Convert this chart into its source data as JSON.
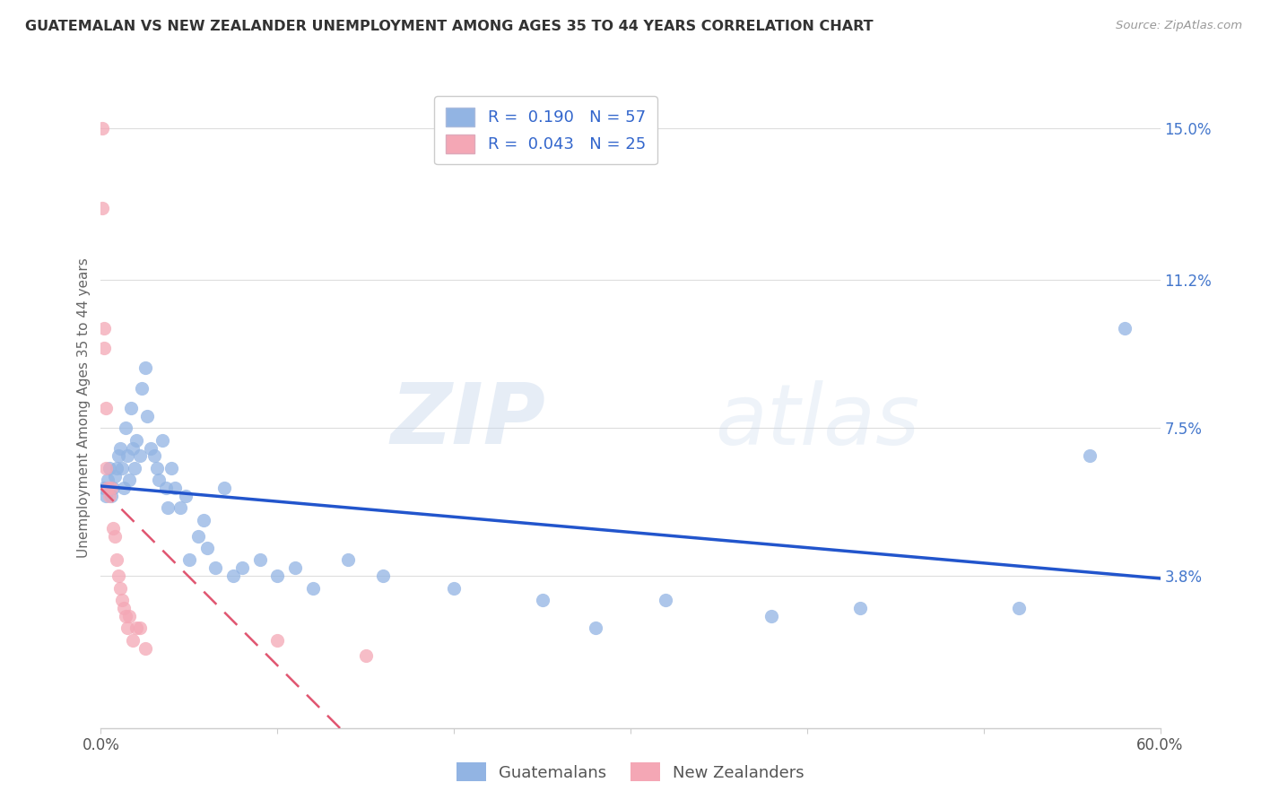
{
  "title": "GUATEMALAN VS NEW ZEALANDER UNEMPLOYMENT AMONG AGES 35 TO 44 YEARS CORRELATION CHART",
  "source": "Source: ZipAtlas.com",
  "ylabel": "Unemployment Among Ages 35 to 44 years",
  "xlim": [
    0.0,
    0.6
  ],
  "ylim": [
    0.0,
    0.16
  ],
  "yticks_right": [
    0.0,
    0.038,
    0.075,
    0.112,
    0.15
  ],
  "yticklabels_right": [
    "",
    "3.8%",
    "7.5%",
    "11.2%",
    "15.0%"
  ],
  "guatemalan_R": 0.19,
  "guatemalan_N": 57,
  "newzealander_R": 0.043,
  "newzealander_N": 25,
  "blue_color": "#92B4E3",
  "pink_color": "#F4A7B5",
  "blue_line_color": "#2255CC",
  "pink_line_color": "#E05570",
  "grid_color": "#DDDDDD",
  "title_color": "#333333",
  "right_tick_color": "#4477CC",
  "guatemalan_x": [
    0.002,
    0.003,
    0.004,
    0.005,
    0.006,
    0.007,
    0.008,
    0.009,
    0.01,
    0.011,
    0.012,
    0.013,
    0.014,
    0.015,
    0.016,
    0.017,
    0.018,
    0.019,
    0.02,
    0.022,
    0.023,
    0.025,
    0.026,
    0.028,
    0.03,
    0.032,
    0.033,
    0.035,
    0.037,
    0.038,
    0.04,
    0.042,
    0.045,
    0.048,
    0.05,
    0.055,
    0.058,
    0.06,
    0.065,
    0.07,
    0.075,
    0.08,
    0.09,
    0.1,
    0.11,
    0.12,
    0.14,
    0.16,
    0.2,
    0.25,
    0.28,
    0.32,
    0.38,
    0.43,
    0.52,
    0.56,
    0.58
  ],
  "guatemalan_y": [
    0.06,
    0.058,
    0.062,
    0.065,
    0.058,
    0.06,
    0.063,
    0.065,
    0.068,
    0.07,
    0.065,
    0.06,
    0.075,
    0.068,
    0.062,
    0.08,
    0.07,
    0.065,
    0.072,
    0.068,
    0.085,
    0.09,
    0.078,
    0.07,
    0.068,
    0.065,
    0.062,
    0.072,
    0.06,
    0.055,
    0.065,
    0.06,
    0.055,
    0.058,
    0.042,
    0.048,
    0.052,
    0.045,
    0.04,
    0.06,
    0.038,
    0.04,
    0.042,
    0.038,
    0.04,
    0.035,
    0.042,
    0.038,
    0.035,
    0.032,
    0.025,
    0.032,
    0.028,
    0.03,
    0.03,
    0.068,
    0.1
  ],
  "newzealander_x": [
    0.001,
    0.001,
    0.002,
    0.002,
    0.003,
    0.003,
    0.004,
    0.005,
    0.006,
    0.007,
    0.008,
    0.009,
    0.01,
    0.011,
    0.012,
    0.013,
    0.014,
    0.015,
    0.016,
    0.018,
    0.02,
    0.022,
    0.025,
    0.1,
    0.15
  ],
  "newzealander_y": [
    0.15,
    0.13,
    0.1,
    0.095,
    0.08,
    0.065,
    0.06,
    0.058,
    0.06,
    0.05,
    0.048,
    0.042,
    0.038,
    0.035,
    0.032,
    0.03,
    0.028,
    0.025,
    0.028,
    0.022,
    0.025,
    0.025,
    0.02,
    0.022,
    0.018
  ],
  "watermark_zip": "ZIP",
  "watermark_atlas": "atlas",
  "legend_guatemalans": "Guatemalans",
  "legend_newzealanders": "New Zealanders"
}
